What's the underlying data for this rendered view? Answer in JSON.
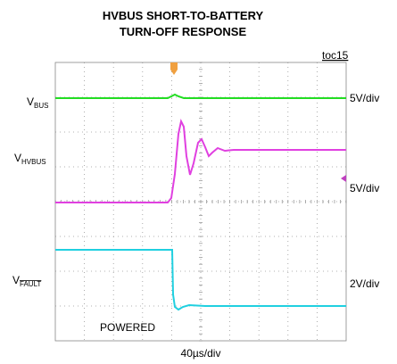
{
  "header": {
    "title_lines": [
      "HVBUS SHORT-TO-BATTERY",
      "TURN-OFF RESPONSE"
    ],
    "figure_id": "toc15"
  },
  "traces": [
    {
      "label": "V",
      "subscript": "BUS",
      "scale": "5V/div"
    },
    {
      "label": "V",
      "subscript": "HVBUS",
      "scale": "5V/div"
    },
    {
      "label": "V",
      "subscript": "FAULT",
      "scale": "2V/div"
    }
  ],
  "annotation": "POWERED",
  "time_scale": "40µs/div"
}
